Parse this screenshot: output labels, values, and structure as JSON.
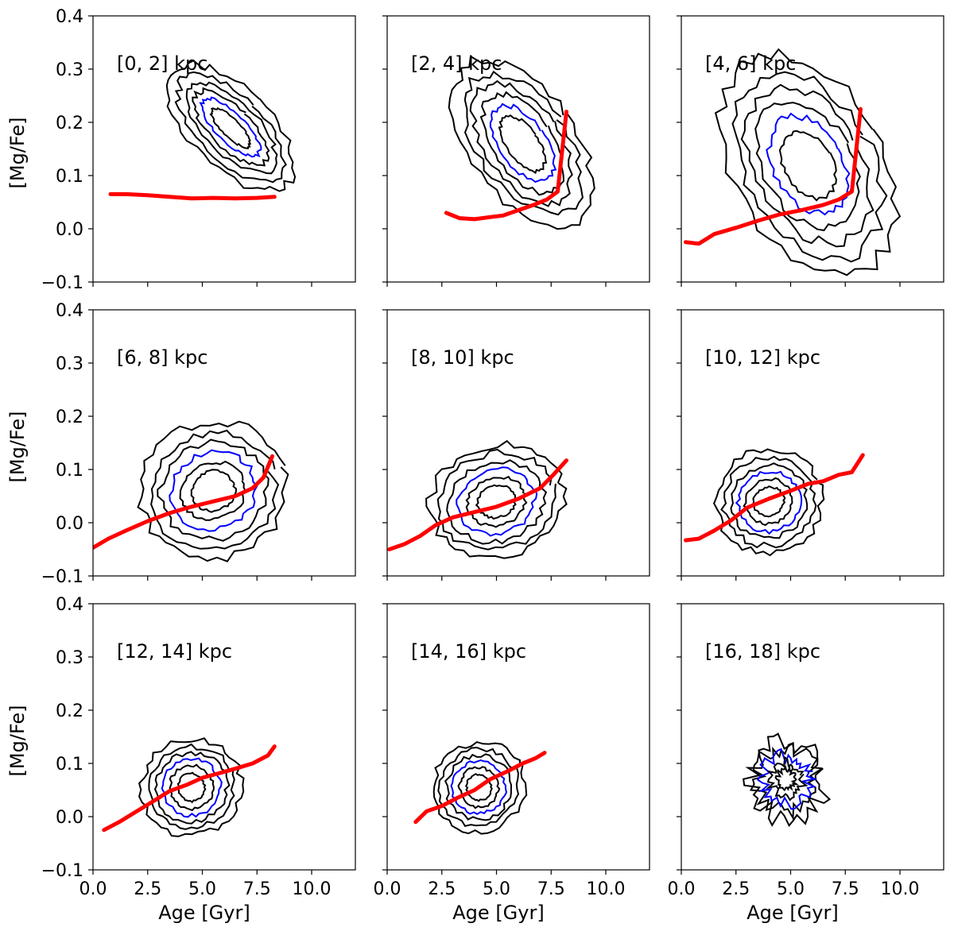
{
  "figure": {
    "xlabel": "Age [Gyr]",
    "ylabel": "[Mg/Fe]",
    "xlim": [
      0,
      12
    ],
    "ylim": [
      -0.1,
      0.4
    ],
    "xticks": [
      0.0,
      2.5,
      5.0,
      7.5,
      10.0
    ],
    "xtick_labels": [
      "0.0",
      "2.5",
      "5.0",
      "7.5",
      "10.0"
    ],
    "yticks": [
      -0.1,
      0.0,
      0.1,
      0.2,
      0.3,
      0.4
    ],
    "ytick_labels": [
      "−0.1",
      "0.0",
      "0.1",
      "0.2",
      "0.3",
      "0.4"
    ],
    "colors": {
      "contour": "#000000",
      "highlight_contour": "#0000ff",
      "median": "#ff0000"
    }
  },
  "chart_data": [
    {
      "type": "line",
      "title": "[0, 2] kpc",
      "row": 0,
      "col": 0,
      "contours": {
        "center": [
          6.3,
          0.19
        ],
        "rx": [
          3.3,
          2.7,
          2.2,
          1.7,
          1.2,
          0.75
        ],
        "ry": [
          0.2,
          0.17,
          0.145,
          0.12,
          0.095,
          0.065
        ],
        "tilt": 1.0,
        "highlight": 4
      },
      "median": {
        "x": [
          0.8,
          1.5,
          2.5,
          3.5,
          4.5,
          5.5,
          6.5,
          7.5,
          8.3
        ],
        "y": [
          0.065,
          0.065,
          0.063,
          0.06,
          0.057,
          0.058,
          0.057,
          0.058,
          0.06
        ]
      }
    },
    {
      "type": "line",
      "title": "[2, 4] kpc",
      "row": 0,
      "col": 1,
      "contours": {
        "center": [
          6.2,
          0.16
        ],
        "rx": [
          4.4,
          3.7,
          3.1,
          2.5,
          1.9,
          1.3
        ],
        "ry": [
          0.24,
          0.2,
          0.17,
          0.14,
          0.11,
          0.08
        ],
        "tilt": 0.7,
        "highlight": 4
      },
      "median": {
        "x": [
          2.7,
          3.3,
          4.0,
          4.7,
          5.3,
          6.0,
          6.7,
          7.3,
          7.8,
          8.2
        ],
        "y": [
          0.03,
          0.02,
          0.018,
          0.022,
          0.025,
          0.035,
          0.045,
          0.055,
          0.07,
          0.22
        ]
      }
    },
    {
      "type": "line",
      "title": "[4, 6] kpc",
      "row": 0,
      "col": 2,
      "contours": {
        "center": [
          5.8,
          0.12
        ],
        "rx": [
          6.2,
          5.3,
          4.5,
          3.7,
          2.9,
          2.0
        ],
        "ry": [
          0.3,
          0.25,
          0.21,
          0.17,
          0.13,
          0.09
        ],
        "tilt": 0.55,
        "highlight": 4
      },
      "median": {
        "x": [
          0.2,
          0.8,
          1.5,
          2.5,
          3.5,
          4.5,
          5.5,
          6.5,
          7.2,
          7.8,
          8.2
        ],
        "y": [
          -0.025,
          -0.028,
          -0.01,
          0.002,
          0.015,
          0.027,
          0.035,
          0.045,
          0.055,
          0.07,
          0.225
        ]
      }
    },
    {
      "type": "line",
      "title": "[6, 8] kpc",
      "row": 1,
      "col": 0,
      "contours": {
        "center": [
          5.5,
          0.06
        ],
        "rx": [
          6.1,
          5.2,
          4.4,
          3.6,
          2.7,
          1.8
        ],
        "ry": [
          0.17,
          0.145,
          0.12,
          0.095,
          0.07,
          0.05
        ],
        "tilt": 0.35,
        "highlight": 3
      },
      "median": {
        "x": [
          0.0,
          0.7,
          1.5,
          2.5,
          3.5,
          4.5,
          5.5,
          6.5,
          7.3,
          7.8,
          8.2
        ],
        "y": [
          -0.047,
          -0.03,
          -0.015,
          0.003,
          0.018,
          0.03,
          0.04,
          0.05,
          0.065,
          0.085,
          0.125
        ]
      }
    },
    {
      "type": "line",
      "title": "[8, 10] kpc",
      "row": 1,
      "col": 1,
      "contours": {
        "center": [
          5.0,
          0.04
        ],
        "rx": [
          5.6,
          4.8,
          4.0,
          3.2,
          2.4,
          1.6
        ],
        "ry": [
          0.14,
          0.12,
          0.1,
          0.08,
          0.06,
          0.04
        ],
        "tilt": 0.3,
        "highlight": 3
      },
      "median": {
        "x": [
          0.1,
          0.8,
          1.5,
          2.2,
          3.0,
          4.0,
          5.0,
          6.0,
          7.0,
          7.6,
          8.2
        ],
        "y": [
          -0.05,
          -0.04,
          -0.025,
          -0.005,
          0.01,
          0.02,
          0.03,
          0.045,
          0.065,
          0.09,
          0.117
        ]
      }
    },
    {
      "type": "line",
      "title": "[10, 12] kpc",
      "row": 1,
      "col": 2,
      "contours": {
        "center": [
          4.0,
          0.04
        ],
        "rx": [
          4.4,
          3.8,
          3.2,
          2.6,
          2.0,
          1.3
        ],
        "ry": [
          0.13,
          0.11,
          0.09,
          0.075,
          0.055,
          0.035
        ],
        "tilt": 0.45,
        "highlight": 3
      },
      "median": {
        "x": [
          0.2,
          0.8,
          1.5,
          2.3,
          3.0,
          4.0,
          5.0,
          5.8,
          6.5,
          7.2,
          7.8,
          8.3
        ],
        "y": [
          -0.033,
          -0.03,
          -0.015,
          0.005,
          0.028,
          0.045,
          0.06,
          0.073,
          0.078,
          0.09,
          0.095,
          0.127
        ]
      }
    },
    {
      "type": "line",
      "title": "[12, 14] kpc",
      "row": 2,
      "col": 0,
      "contours": {
        "center": [
          4.5,
          0.055
        ],
        "rx": [
          4.2,
          3.6,
          3.0,
          2.4,
          1.8,
          1.1
        ],
        "ry": [
          0.12,
          0.1,
          0.085,
          0.07,
          0.055,
          0.035
        ],
        "tilt": 0.45,
        "highlight": 3
      },
      "median": {
        "x": [
          0.5,
          1.2,
          2.0,
          2.8,
          3.5,
          4.3,
          5.0,
          5.8,
          6.5,
          7.3,
          8.0,
          8.3
        ],
        "y": [
          -0.025,
          -0.01,
          0.01,
          0.03,
          0.048,
          0.06,
          0.073,
          0.082,
          0.09,
          0.1,
          0.115,
          0.132
        ]
      }
    },
    {
      "type": "line",
      "title": "[14, 16] kpc",
      "row": 2,
      "col": 1,
      "contours": {
        "center": [
          4.2,
          0.055
        ],
        "rx": [
          3.9,
          3.3,
          2.7,
          2.2,
          1.6,
          1.0
        ],
        "ry": [
          0.11,
          0.095,
          0.08,
          0.065,
          0.05,
          0.033
        ],
        "tilt": 0.5,
        "highlight": 3
      },
      "median": {
        "x": [
          1.3,
          1.8,
          2.5,
          3.2,
          4.0,
          4.7,
          5.5,
          6.2,
          6.8,
          7.2
        ],
        "y": [
          -0.01,
          0.01,
          0.02,
          0.035,
          0.05,
          0.07,
          0.085,
          0.1,
          0.11,
          0.12
        ]
      }
    },
    {
      "type": "line",
      "title": "[16, 18] kpc",
      "row": 2,
      "col": 2,
      "contours": {
        "center": [
          4.8,
          0.07
        ],
        "rx": [
          2.9,
          2.4,
          1.9,
          1.3,
          0.7
        ],
        "ry": [
          0.1,
          0.08,
          0.06,
          0.045,
          0.025
        ],
        "tilt": 0.3,
        "highlight": 2,
        "jagged": true
      },
      "median": null
    }
  ]
}
